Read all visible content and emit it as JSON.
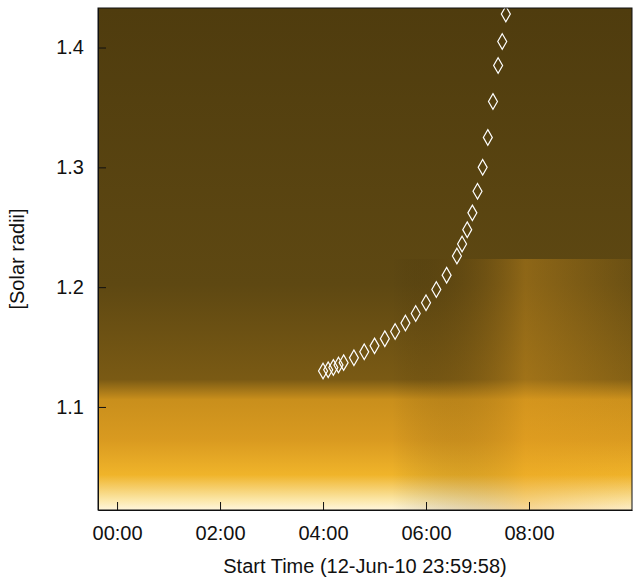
{
  "chart_data": {
    "type": "scatter",
    "x_label": "Start Time (12-Jun-10 23:59:58)",
    "y_label": "[Solar radii]",
    "xlim": [
      -0.37,
      10.0
    ],
    "ylim": [
      1.014,
      1.433
    ],
    "xticks": [
      {
        "value": 0,
        "label": "00:00"
      },
      {
        "value": 2,
        "label": "02:00"
      },
      {
        "value": 4,
        "label": "04:00"
      },
      {
        "value": 6,
        "label": "06:00"
      },
      {
        "value": 8,
        "label": "08:00"
      }
    ],
    "yticks": [
      1.1,
      1.2,
      1.3,
      1.4
    ],
    "series": [
      {
        "color": "#ffffff",
        "marker": "diamond",
        "x": [
          4.0,
          4.1,
          4.2,
          4.3,
          4.4,
          4.6,
          4.8,
          5.0,
          5.2,
          5.4,
          5.6,
          5.8,
          6.0,
          6.2,
          6.4,
          6.6,
          6.7,
          6.8,
          6.9,
          7.0,
          7.1,
          7.2,
          7.3,
          7.4,
          7.48,
          7.55
        ],
        "values": [
          1.13,
          1.131,
          1.133,
          1.135,
          1.137,
          1.141,
          1.146,
          1.151,
          1.157,
          1.163,
          1.17,
          1.178,
          1.187,
          1.198,
          1.21,
          1.226,
          1.236,
          1.248,
          1.262,
          1.28,
          1.3,
          1.325,
          1.355,
          1.385,
          1.405,
          1.428
        ]
      }
    ]
  }
}
